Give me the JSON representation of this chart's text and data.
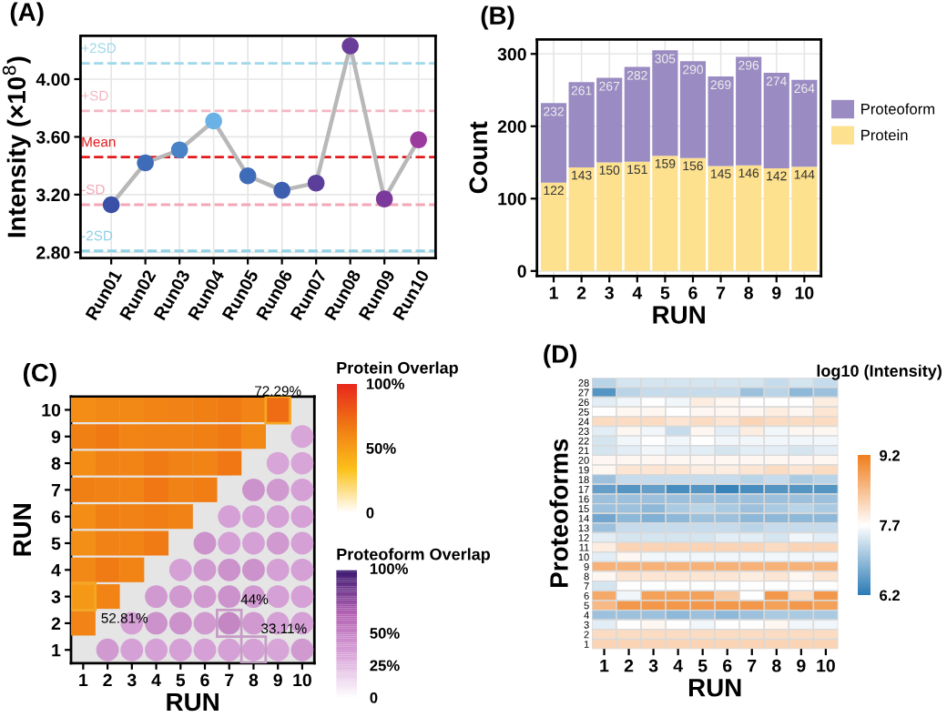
{
  "chart_data": [
    {
      "type": "line",
      "title": "(A)",
      "ylabel": "Intensity (×10$^{8}$)",
      "categories": [
        "Run01",
        "Run02",
        "Run03",
        "Run04",
        "Run05",
        "Run06",
        "Run07",
        "Run08",
        "Run09",
        "Run10"
      ],
      "series": [
        {
          "color": "#b8b8b8",
          "values": [
            3.13,
            3.42,
            3.51,
            3.71,
            3.33,
            3.23,
            3.28,
            4.23,
            3.17,
            3.58
          ],
          "colors": [
            "#3a4fa6",
            "#3f6cb8",
            "#4a82c8",
            "#6ab2e6",
            "#3f6cb8",
            "#3d5fb0",
            "#5a3e9a",
            "#6a3d9a",
            "#7b3a9b",
            "#9b3a9e"
          ]
        }
      ],
      "ylim": [
        2.76,
        4.3
      ],
      "yticks": [
        {
          "value": 2.8,
          "label": "2.80"
        },
        {
          "value": 3.2,
          "label": "3.20"
        },
        {
          "value": 3.6,
          "label": "3.60"
        },
        {
          "value": 4.0,
          "label": "4.00"
        }
      ],
      "ref_lines": [
        {
          "axis": "y",
          "value": 4.11,
          "label": "+2SD",
          "color": "#9fd8ea",
          "line_style": "dashed"
        },
        {
          "axis": "y",
          "value": 3.78,
          "label": "+SD",
          "color": "#f4b6c2",
          "line_style": "dashed"
        },
        {
          "axis": "y",
          "value": 3.46,
          "label": "Mean",
          "color": "#e31a1c",
          "line_style": "dashed"
        },
        {
          "axis": "y",
          "value": 3.13,
          "label": "-SD",
          "color": "#f4a6b6",
          "line_style": "dashed"
        },
        {
          "axis": "y",
          "value": 2.81,
          "label": "-2SD",
          "color": "#8fd0e6",
          "line_style": "dashed"
        }
      ],
      "grid": true,
      "marker": "circle",
      "line_style": "solid"
    },
    {
      "type": "bar",
      "title": "(B)",
      "xlabel": "RUN",
      "ylabel": "Count",
      "stacked": true,
      "categories": [
        "1",
        "2",
        "3",
        "4",
        "5",
        "6",
        "7",
        "8",
        "9",
        "10"
      ],
      "series": [
        {
          "name": "Protein",
          "color": "#fde18f",
          "values": [
            122,
            143,
            150,
            151,
            159,
            156,
            145,
            146,
            142,
            144
          ],
          "value_labels": [
            "122",
            "143",
            "150",
            "151",
            "159",
            "156",
            "145",
            "146",
            "142",
            "144"
          ]
        },
        {
          "name": "Proteoform",
          "color": "#9a8cc2",
          "values": [
            110,
            118,
            117,
            131,
            146,
            134,
            124,
            150,
            132,
            120
          ]
        }
      ],
      "totals": [
        "232",
        "261",
        "267",
        "282",
        "305",
        "290",
        "269",
        "296",
        "274",
        "264"
      ],
      "ylim": [
        -7,
        320
      ],
      "yticks": [
        0,
        100,
        200,
        300
      ],
      "grid": true,
      "legend": "right"
    },
    {
      "type": "scatter",
      "title": "(C)",
      "xlabel": "RUN",
      "ylabel": "RUN",
      "clabel": "Protein Overlap",
      "series": [
        {
          "marker": "square",
          "x": [
            1,
            2,
            3,
            4,
            5,
            6,
            7,
            8,
            9,
            1,
            2,
            3,
            4,
            5,
            6,
            7,
            8,
            1,
            2,
            3,
            4,
            5,
            6,
            7,
            1,
            2,
            3,
            4,
            5,
            6,
            1,
            2,
            3,
            4,
            5,
            1,
            2,
            3,
            4,
            1,
            2,
            3,
            1,
            2,
            1
          ],
          "values": [
            10,
            10,
            10,
            10,
            10,
            10,
            10,
            10,
            10,
            9,
            9,
            9,
            9,
            9,
            9,
            9,
            9,
            8,
            8,
            8,
            8,
            8,
            8,
            8,
            7,
            7,
            7,
            7,
            7,
            7,
            6,
            6,
            6,
            6,
            6,
            5,
            5,
            5,
            5,
            4,
            4,
            4,
            3,
            3,
            2
          ],
          "colors": [
            "#f38d16",
            "#f28815",
            "#f28815",
            "#f28415",
            "#f18215",
            "#f18014",
            "#f07b14",
            "#f28415",
            "#ef6c15",
            "#f18014",
            "#f07914",
            "#f28415",
            "#f18215",
            "#f18215",
            "#f18014",
            "#f07914",
            "#f28815",
            "#f38d16",
            "#f18215",
            "#f28415",
            "#f07b14",
            "#f18215",
            "#f28415",
            "#f07714",
            "#f18014",
            "#f18215",
            "#f28415",
            "#f07714",
            "#f18215",
            "#f17e14",
            "#f38d16",
            "#f18014",
            "#f18215",
            "#f17e14",
            "#f18215",
            "#f38f16",
            "#f18215",
            "#f28415",
            "#f07b14",
            "#f28815",
            "#f07b14",
            "#f28415",
            "#f59816",
            "#f28415",
            "#f28415"
          ]
        },
        {
          "marker": "circle",
          "x": [
            10,
            9,
            10,
            8,
            9,
            10,
            7,
            8,
            9,
            10,
            6,
            7,
            8,
            9,
            10,
            5,
            6,
            7,
            8,
            9,
            10,
            4,
            5,
            6,
            7,
            8,
            9,
            10,
            3,
            4,
            5,
            6,
            7,
            8,
            9,
            10,
            2,
            3,
            4,
            5,
            6,
            7,
            8,
            9,
            10
          ],
          "values": [
            9,
            8,
            8,
            7,
            7,
            7,
            6,
            6,
            6,
            6,
            5,
            5,
            5,
            5,
            5,
            4,
            4,
            4,
            4,
            4,
            4,
            3,
            3,
            3,
            3,
            3,
            3,
            3,
            2,
            2,
            2,
            2,
            2,
            2,
            2,
            2,
            1,
            1,
            1,
            1,
            1,
            1,
            1,
            1,
            1
          ],
          "colors": [
            "#d8a5d8",
            "#d8a5d8",
            "#d8a5d8",
            "#cc92cc",
            "#d09ad0",
            "#d5a0d5",
            "#d5a0d5",
            "#d5a0d5",
            "#d5a0d5",
            "#d5a0d5",
            "#cc92cc",
            "#d5a0d5",
            "#d5a0d5",
            "#d09ad0",
            "#d5a0d5",
            "#d5a0d5",
            "#d09ad0",
            "#cc92cc",
            "#cc92cc",
            "#d5a0d5",
            "#d5a0d5",
            "#d09ad0",
            "#d09ad0",
            "#d09ad0",
            "#cc92cc",
            "#d09ad0",
            "#d5a0d5",
            "#d5a0d5",
            "#d5a0d5",
            "#cc92cc",
            "#cc92cc",
            "#d09ad0",
            "#c487c4",
            "#d09ad0",
            "#d5a0d5",
            "#d5a0d5",
            "#d09ad0",
            "#d5a0d5",
            "#d5a0d5",
            "#d5a0d5",
            "#d5a0d5",
            "#d5a0d5",
            "#d5a0d5",
            "#d8a5d8",
            "#d09ad0"
          ]
        }
      ],
      "annotations": [
        {
          "text": "72.29%",
          "x": 9,
          "y": 10
        },
        {
          "text": "52.81%",
          "x": 1,
          "y": 3
        },
        {
          "text": "44%",
          "x": 7,
          "y": 2
        },
        {
          "text": "33.11%",
          "x": 8,
          "y": 1
        }
      ],
      "clim": [
        0,
        100
      ],
      "cticks": [
        {
          "value": 0,
          "label": "0"
        },
        {
          "value": 50,
          "label": "50%"
        },
        {
          "value": 100,
          "label": "100%"
        }
      ],
      "xlim": [
        0.5,
        10.5
      ],
      "ylim": [
        0.5,
        10.5
      ],
      "xticks": [
        1,
        2,
        3,
        4,
        5,
        6,
        7,
        8,
        9,
        10
      ],
      "yticks": [
        1,
        2,
        3,
        4,
        5,
        6,
        7,
        8,
        9,
        10
      ]
    },
    {
      "type": "other",
      "title": "Proteoform Overlap",
      "annotations": [
        "100%",
        "50%",
        "25%",
        "0"
      ]
    },
    {
      "type": "heatmap",
      "title": "(D)",
      "xlabel": "RUN",
      "ylabel": "Proteoforms",
      "clabel": "log10 (Intensity)",
      "categories": [
        "1",
        "2",
        "3",
        "4",
        "5",
        "6",
        "7",
        "8",
        "9",
        "10"
      ],
      "y_categories": [
        "28",
        "27",
        "26",
        "25",
        "24",
        "23",
        "22",
        "21",
        "20",
        "19",
        "18",
        "17",
        "16",
        "15",
        "14",
        "13",
        "12",
        "11",
        "10",
        "9",
        "8",
        "7",
        "6",
        "5",
        "4",
        "3",
        "2",
        "1"
      ],
      "cells": [
        [
          7.2,
          7.4,
          7.4,
          7.4,
          7.4,
          7.4,
          7.4,
          7.3,
          7.4,
          7.3
        ],
        [
          6.5,
          7.2,
          7.3,
          7.3,
          7.3,
          7.3,
          7.0,
          7.2,
          6.9,
          7.0
        ],
        [
          7.5,
          7.6,
          7.7,
          7.6,
          7.9,
          7.8,
          7.7,
          7.7,
          7.7,
          7.9
        ],
        [
          7.7,
          7.8,
          7.8,
          7.7,
          7.8,
          7.8,
          7.8,
          7.9,
          7.8,
          8.0
        ],
        [
          8.1,
          8.1,
          8.1,
          8.0,
          8.1,
          8.0,
          8.2,
          8.1,
          8.1,
          8.1
        ],
        [
          7.5,
          7.8,
          7.6,
          7.3,
          7.8,
          7.5,
          7.9,
          7.6,
          7.8,
          7.8
        ],
        [
          7.4,
          7.6,
          7.7,
          7.6,
          7.7,
          7.6,
          7.6,
          7.6,
          7.6,
          7.6
        ],
        [
          7.4,
          7.5,
          7.6,
          7.5,
          7.5,
          7.4,
          7.5,
          7.5,
          7.4,
          7.5
        ],
        [
          7.8,
          7.8,
          7.8,
          7.8,
          7.8,
          7.8,
          7.8,
          7.8,
          7.8,
          7.8
        ],
        [
          7.8,
          8.0,
          8.0,
          8.0,
          7.9,
          7.9,
          8.0,
          8.1,
          8.0,
          8.1
        ],
        [
          7.0,
          7.3,
          7.3,
          7.3,
          7.3,
          7.3,
          7.2,
          7.3,
          7.1,
          7.2
        ],
        [
          6.6,
          6.5,
          6.6,
          6.4,
          6.5,
          6.3,
          6.4,
          6.5,
          6.5,
          6.5
        ],
        [
          7.0,
          7.0,
          7.0,
          7.0,
          7.0,
          7.0,
          7.0,
          7.0,
          7.0,
          7.0
        ],
        [
          7.0,
          7.0,
          6.9,
          7.1,
          7.2,
          7.1,
          7.0,
          7.1,
          7.2,
          7.1
        ],
        [
          6.7,
          6.9,
          6.8,
          6.9,
          7.0,
          7.0,
          6.9,
          6.9,
          6.9,
          6.9
        ],
        [
          7.0,
          7.3,
          7.3,
          7.3,
          7.3,
          7.3,
          7.2,
          7.3,
          7.3,
          7.3
        ],
        [
          7.5,
          7.4,
          7.4,
          7.4,
          7.4,
          7.5,
          7.5,
          7.4,
          7.6,
          7.5
        ],
        [
          7.9,
          8.2,
          8.2,
          8.2,
          8.2,
          8.2,
          8.2,
          8.1,
          8.2,
          8.2
        ],
        [
          7.5,
          7.8,
          7.6,
          7.6,
          7.6,
          7.6,
          7.6,
          7.6,
          7.6,
          7.6
        ],
        [
          8.6,
          8.6,
          8.6,
          8.6,
          8.6,
          8.6,
          8.6,
          8.6,
          8.6,
          8.6
        ],
        [
          7.8,
          8.0,
          8.0,
          8.0,
          8.0,
          8.0,
          7.9,
          8.0,
          7.8,
          8.0
        ],
        [
          7.4,
          7.7,
          7.7,
          7.7,
          7.7,
          7.7,
          7.7,
          7.7,
          7.7,
          7.7
        ],
        [
          8.7,
          7.6,
          8.8,
          8.8,
          8.8,
          8.3,
          7.7,
          8.9,
          8.1,
          8.9
        ],
        [
          8.5,
          8.9,
          8.9,
          8.9,
          8.9,
          8.9,
          8.9,
          8.8,
          8.9,
          8.8
        ],
        [
          7.0,
          7.0,
          7.0,
          6.9,
          7.0,
          6.9,
          7.0,
          7.1,
          7.1,
          7.1
        ],
        [
          7.5,
          7.7,
          7.8,
          7.7,
          7.6,
          7.7,
          7.7,
          7.8,
          7.6,
          7.6
        ],
        [
          8.1,
          8.1,
          8.1,
          8.1,
          8.1,
          8.1,
          8.1,
          8.1,
          8.1,
          8.1
        ],
        [
          8.2,
          8.2,
          8.2,
          8.2,
          8.2,
          8.2,
          8.2,
          8.2,
          8.2,
          8.2
        ]
      ],
      "clim": [
        6.2,
        9.2
      ],
      "cticks": [
        6.2,
        7.7,
        9.2
      ]
    }
  ]
}
